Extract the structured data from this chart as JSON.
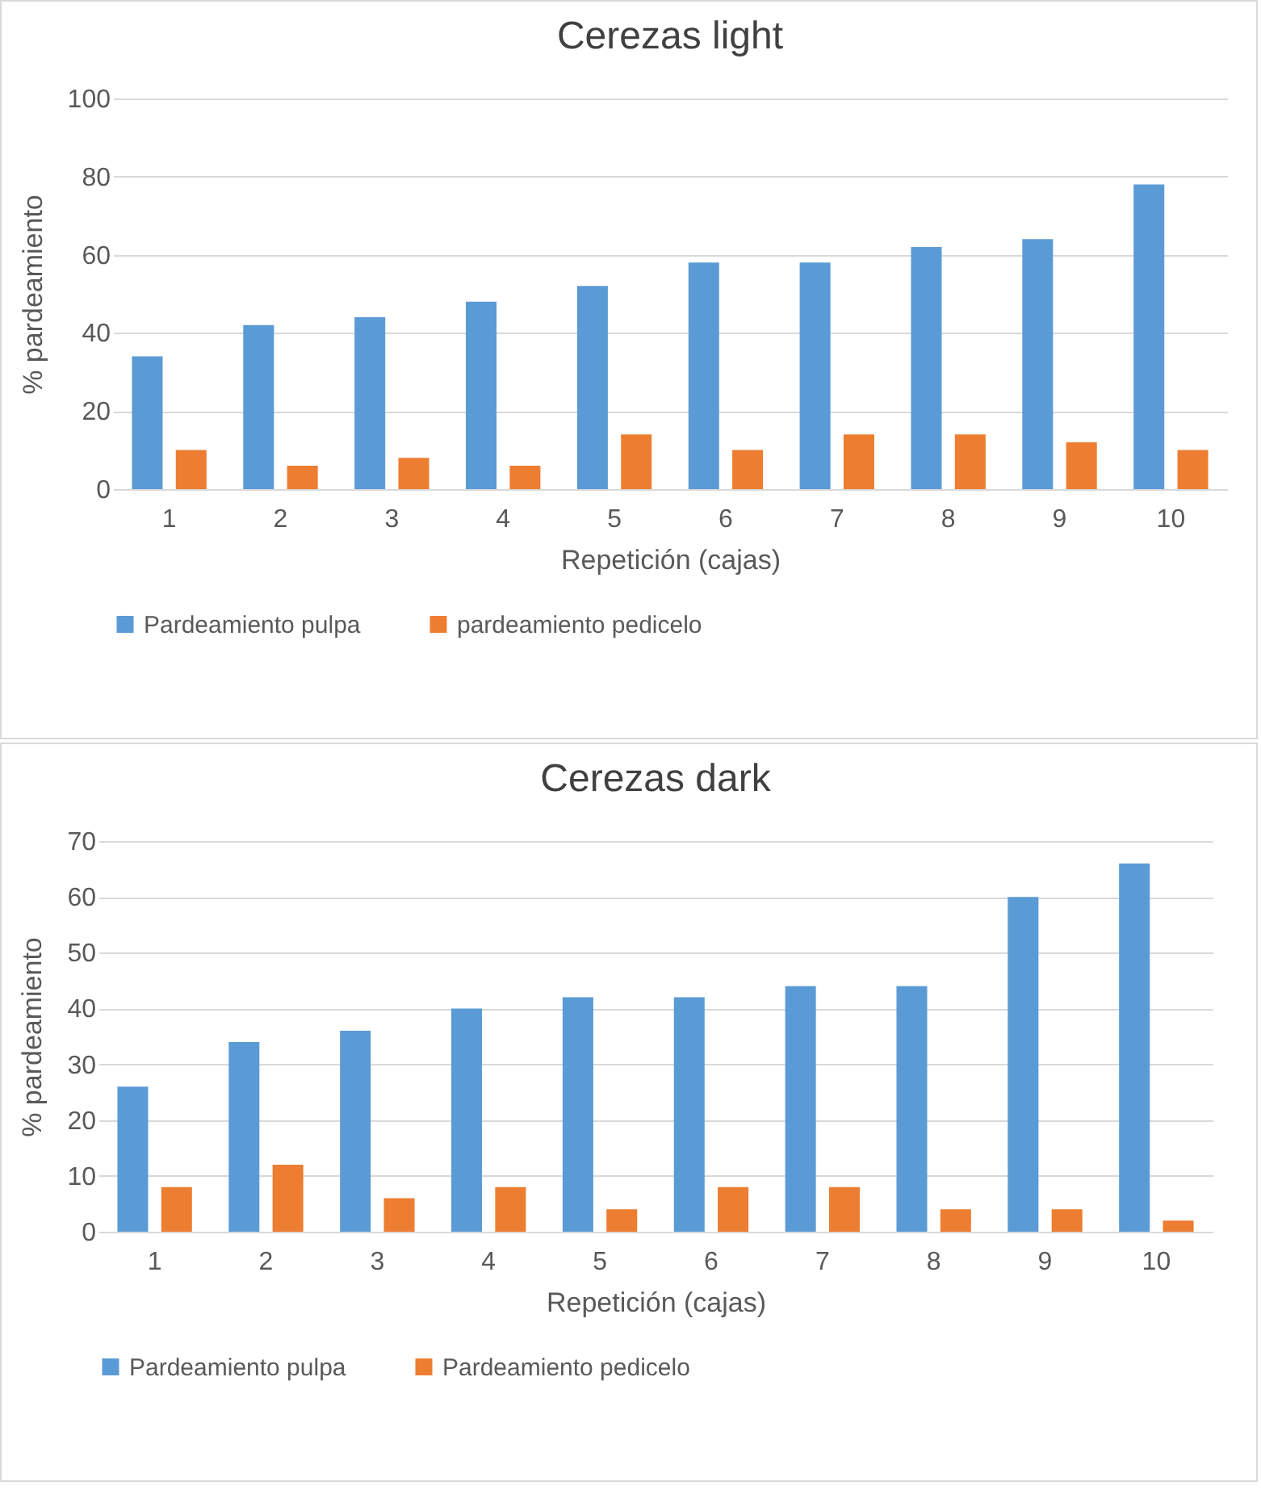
{
  "chart_data": [
    {
      "type": "bar",
      "title": "Cerezas light",
      "xlabel": "Repetición (cajas)",
      "ylabel": "% pardeamiento",
      "categories": [
        "1",
        "2",
        "3",
        "4",
        "5",
        "6",
        "7",
        "8",
        "9",
        "10"
      ],
      "series": [
        {
          "name": "Pardeamiento pulpa",
          "color": "#5b9bd5",
          "values": [
            34,
            42,
            44,
            48,
            52,
            58,
            58,
            62,
            64,
            78
          ]
        },
        {
          "name": "pardeamiento pedicelo",
          "color": "#ed7d31",
          "values": [
            10,
            6,
            8,
            6,
            14,
            10,
            14,
            14,
            12,
            10
          ]
        }
      ],
      "ylim": [
        0,
        100
      ],
      "yticks": [
        0,
        20,
        40,
        60,
        80,
        100
      ],
      "grid": "y",
      "legend": "bottom"
    },
    {
      "type": "bar",
      "title": "Cerezas dark",
      "xlabel": "Repetición (cajas)",
      "ylabel": "% pardeamiento",
      "categories": [
        "1",
        "2",
        "3",
        "4",
        "5",
        "6",
        "7",
        "8",
        "9",
        "10"
      ],
      "series": [
        {
          "name": "Pardeamiento pulpa",
          "color": "#5b9bd5",
          "values": [
            26,
            34,
            36,
            40,
            42,
            42,
            44,
            44,
            60,
            66
          ]
        },
        {
          "name": "Pardeamiento pedicelo",
          "color": "#ed7d31",
          "values": [
            8,
            12,
            6,
            8,
            4,
            8,
            8,
            4,
            4,
            2
          ]
        }
      ],
      "ylim": [
        0,
        70
      ],
      "yticks": [
        0,
        10,
        20,
        30,
        40,
        50,
        60,
        70
      ],
      "grid": "y",
      "legend": "bottom"
    }
  ]
}
